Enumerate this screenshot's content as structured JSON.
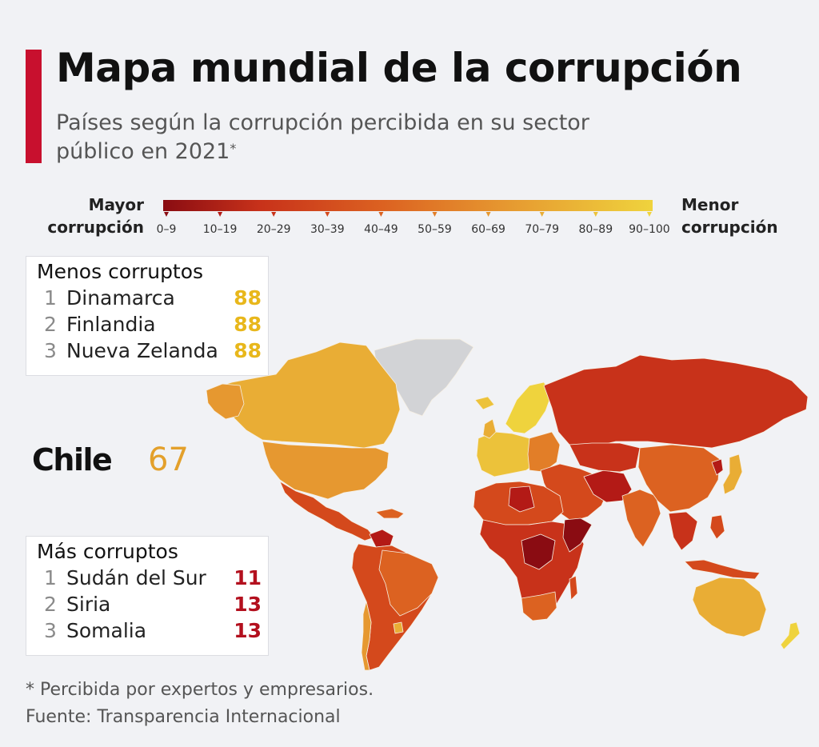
{
  "title": "Mapa mundial de la corrupción",
  "subtitle": "Países según la corrupción percibida en su sector público en 2021",
  "subtitle_mark": "*",
  "legend": {
    "left_line1": "Mayor",
    "left_line2": "corrupción",
    "right_line1": "Menor",
    "right_line2": "corrupción",
    "bins": [
      "0–9",
      "10–19",
      "20–29",
      "30–39",
      "40–49",
      "50–59",
      "60–69",
      "70–79",
      "80–89",
      "90–100"
    ],
    "colors": {
      "c0": "#8a0c12",
      "c1": "#b31a16",
      "c2": "#c8321a",
      "c3": "#d4491c",
      "c4": "#dc6221",
      "c5": "#e27e28",
      "c6": "#e69830",
      "c7": "#e9ad35",
      "c8": "#ecc23a",
      "c9": "#efd33d",
      "no_data": "#d2d3d6",
      "accent": "#c8102e"
    }
  },
  "least_corrupt": {
    "title": "Menos corruptos",
    "rows": [
      {
        "rank": "1",
        "country": "Dinamarca",
        "score": "88"
      },
      {
        "rank": "2",
        "country": "Finlandia",
        "score": "88"
      },
      {
        "rank": "3",
        "country": "Nueva Zelanda",
        "score": "88"
      }
    ]
  },
  "highlight": {
    "country": "Chile",
    "score": "67"
  },
  "most_corrupt": {
    "title": "Más corruptos",
    "rows": [
      {
        "rank": "1",
        "country": "Sudán del Sur",
        "score": "11"
      },
      {
        "rank": "2",
        "country": "Siria",
        "score": "13"
      },
      {
        "rank": "3",
        "country": "Somalia",
        "score": "13"
      }
    ]
  },
  "footnote": "* Percibida por expertos y empresarios.",
  "source": "Fuente: Transparencia Internacional"
}
